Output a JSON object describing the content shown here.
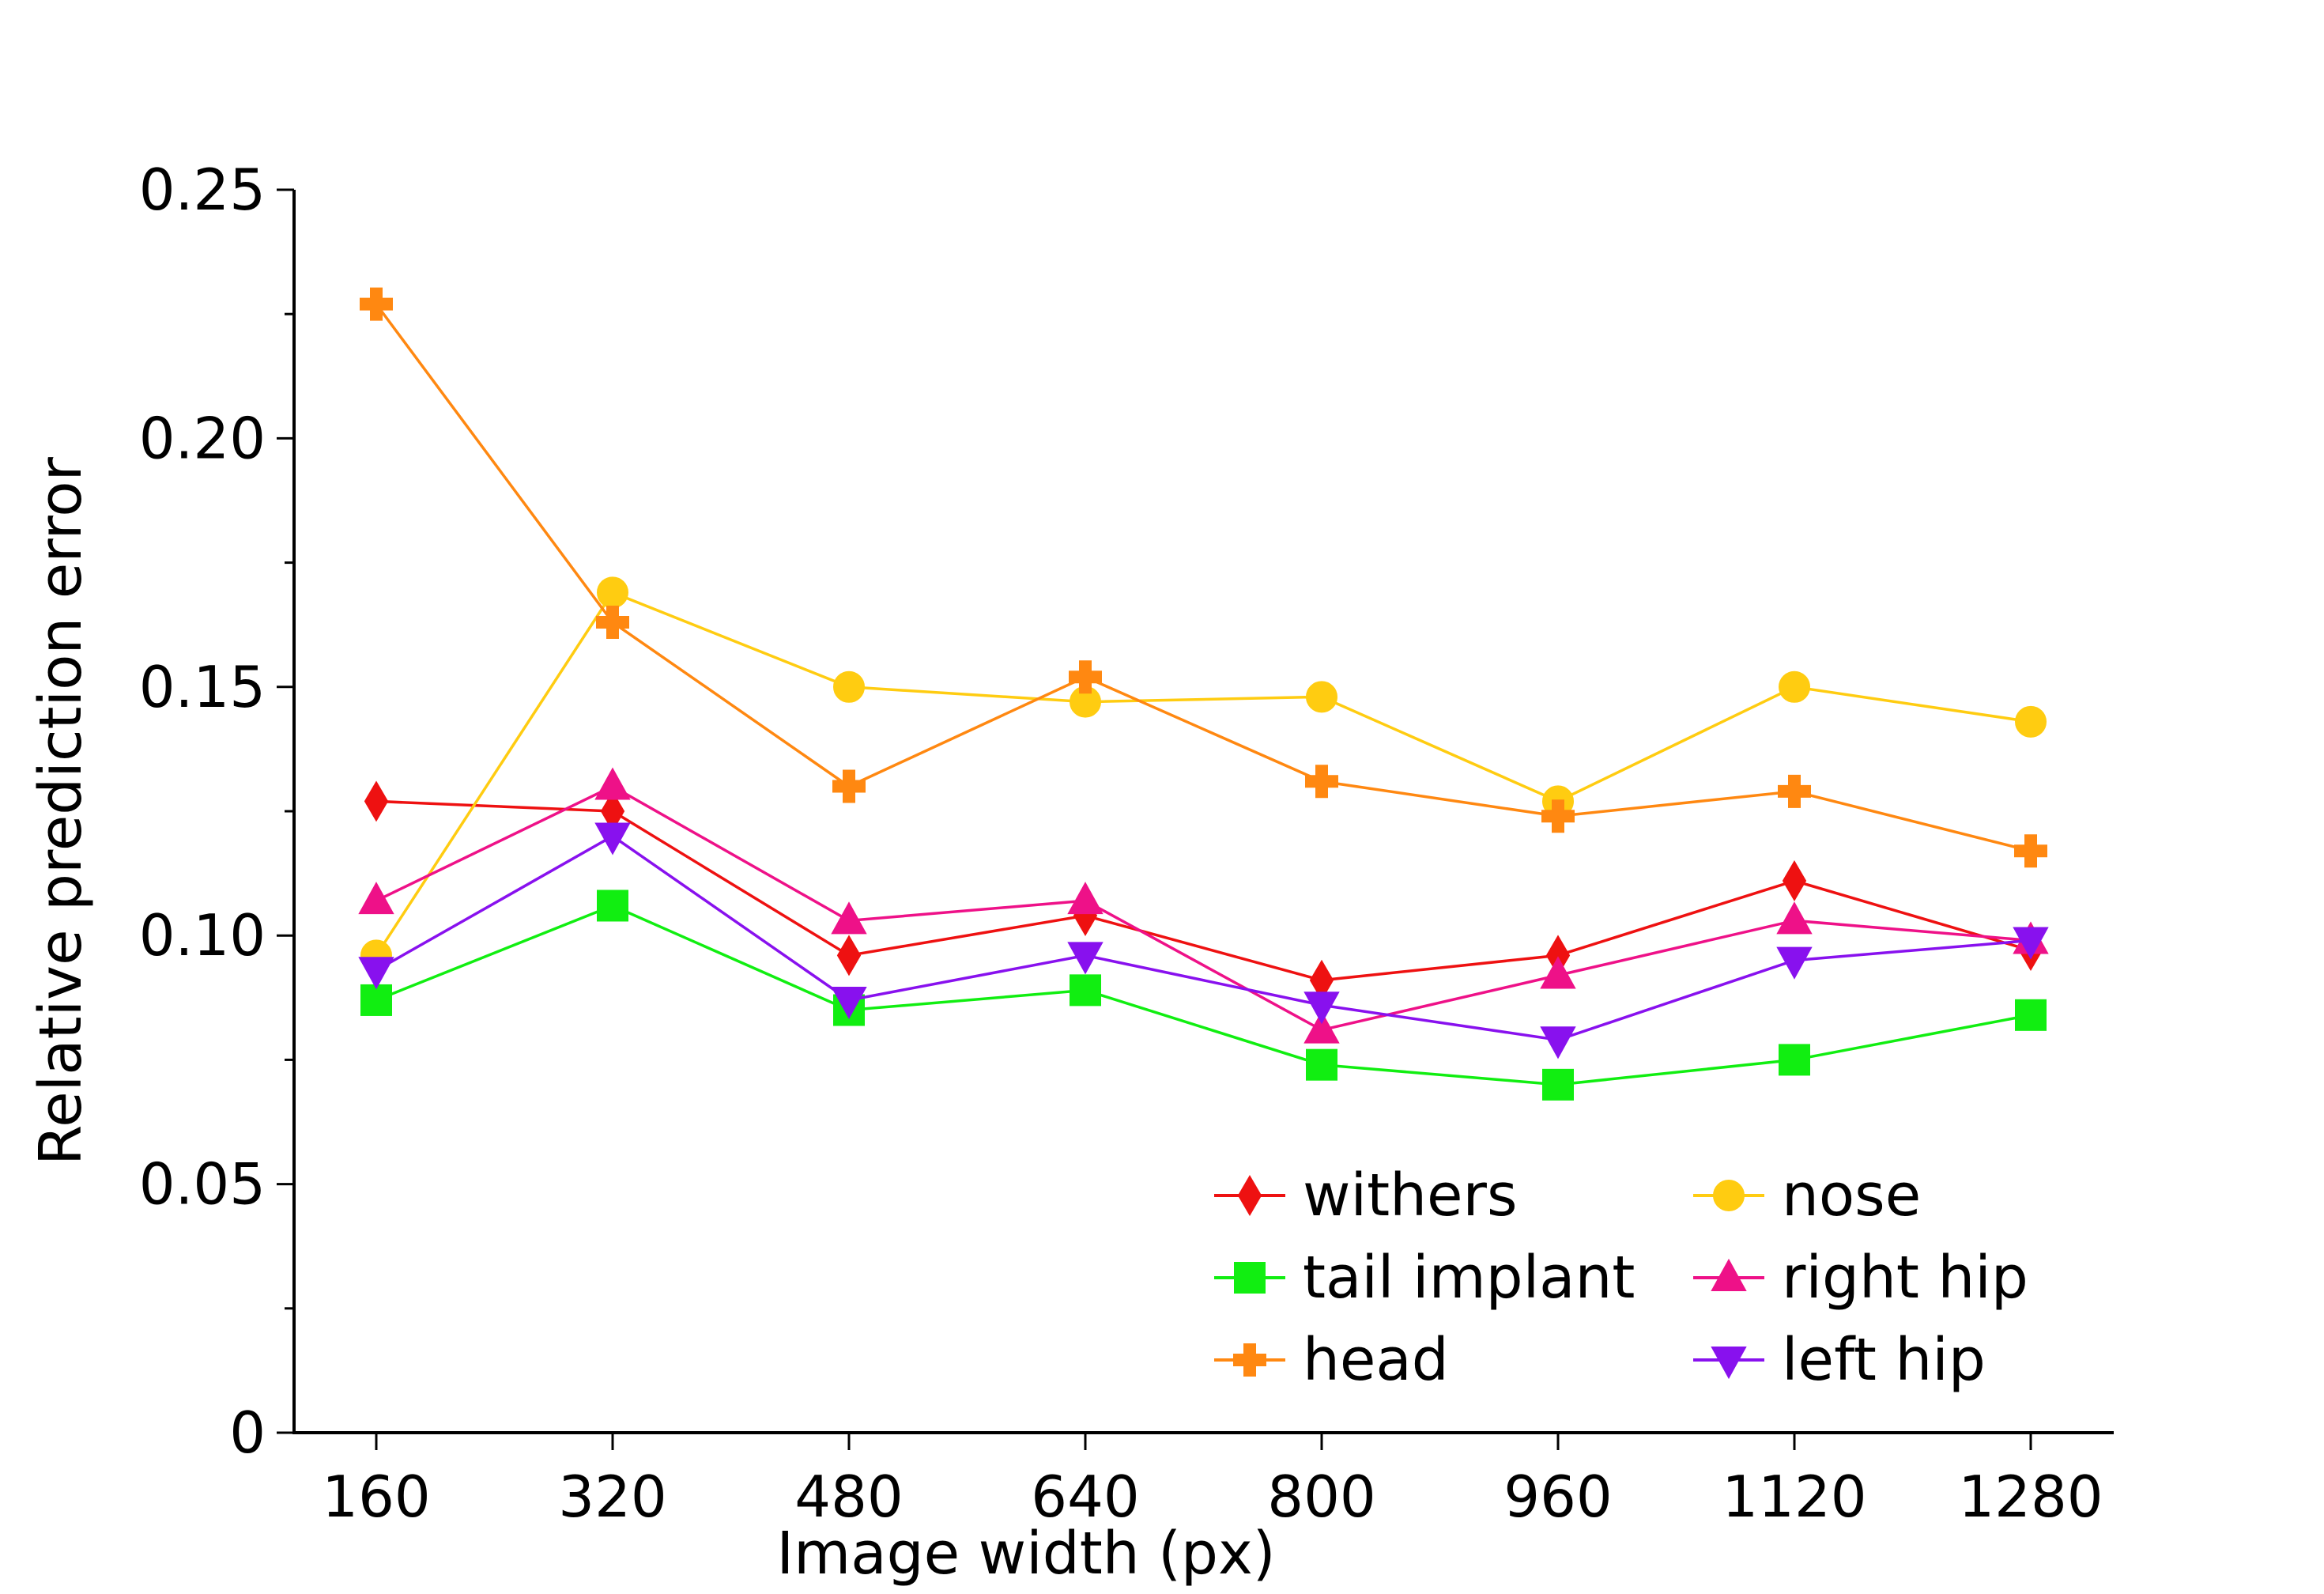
{
  "chart_data": {
    "type": "line",
    "xlabel": "Image width (px)",
    "ylabel": "Relative prediction error",
    "x": [
      160,
      320,
      480,
      640,
      800,
      960,
      1120,
      1280
    ],
    "x_tick_labels": [
      "160",
      "320",
      "480",
      "640",
      "800",
      "960",
      "1120",
      "1280"
    ],
    "ylim": [
      0,
      0.25
    ],
    "y_ticks": [
      0,
      0.05,
      0.1,
      0.15,
      0.2,
      0.25
    ],
    "y_tick_labels": [
      "0",
      "0.05",
      "0.10",
      "0.15",
      "0.20",
      "0.25"
    ],
    "grid": false,
    "legend_position": "lower-right",
    "series": [
      {
        "name": "withers",
        "color": "#ee1111",
        "marker": "diamond",
        "values": [
          0.127,
          0.125,
          0.096,
          0.104,
          0.091,
          0.096,
          0.111,
          0.097
        ]
      },
      {
        "name": "nose",
        "color": "#ffcc11",
        "marker": "circle",
        "values": [
          0.096,
          0.169,
          0.15,
          0.147,
          0.148,
          0.127,
          0.15,
          0.143
        ]
      },
      {
        "name": "tail implant",
        "color": "#11ee11",
        "marker": "square",
        "values": [
          0.087,
          0.106,
          0.085,
          0.089,
          0.074,
          0.07,
          0.075,
          0.084
        ]
      },
      {
        "name": "right hip",
        "color": "#ee1188",
        "marker": "triangle-up",
        "values": [
          0.107,
          0.13,
          0.103,
          0.107,
          0.081,
          0.092,
          0.103,
          0.099
        ]
      },
      {
        "name": "head",
        "color": "#ff8811",
        "marker": "plus",
        "values": [
          0.227,
          0.163,
          0.13,
          0.152,
          0.131,
          0.124,
          0.129,
          0.117
        ]
      },
      {
        "name": "left hip",
        "color": "#8811ee",
        "marker": "triangle-down",
        "values": [
          0.093,
          0.12,
          0.087,
          0.096,
          0.086,
          0.079,
          0.095,
          0.099
        ]
      }
    ]
  }
}
